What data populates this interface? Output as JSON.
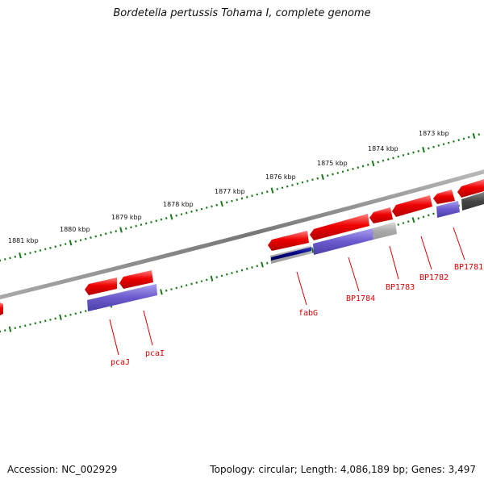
{
  "title": "Bordetella pertussis Tohama I, complete genome",
  "accession": "Accession: NC_002929",
  "info": "Topology: circular; Length: 4,086,189 bp; Genes: 3,497",
  "scale_labels": [
    "1881 kbp",
    "1880 kbp",
    "1879 kbp",
    "1878 kbp",
    "1877 kbp",
    "1876 kbp",
    "1875 kbp",
    "1874 kbp",
    "1873 kbp"
  ],
  "gene_labels": [
    "pcaJ",
    "pcaI",
    "fabG",
    "BP1784",
    "BP1783",
    "BP1782",
    "BP1781"
  ],
  "colors": {
    "cds": "#ee0000",
    "protein": "#6a5acd",
    "backbone": "#888888",
    "ticks": "#1a7a1a",
    "label": "#dd0000"
  }
}
